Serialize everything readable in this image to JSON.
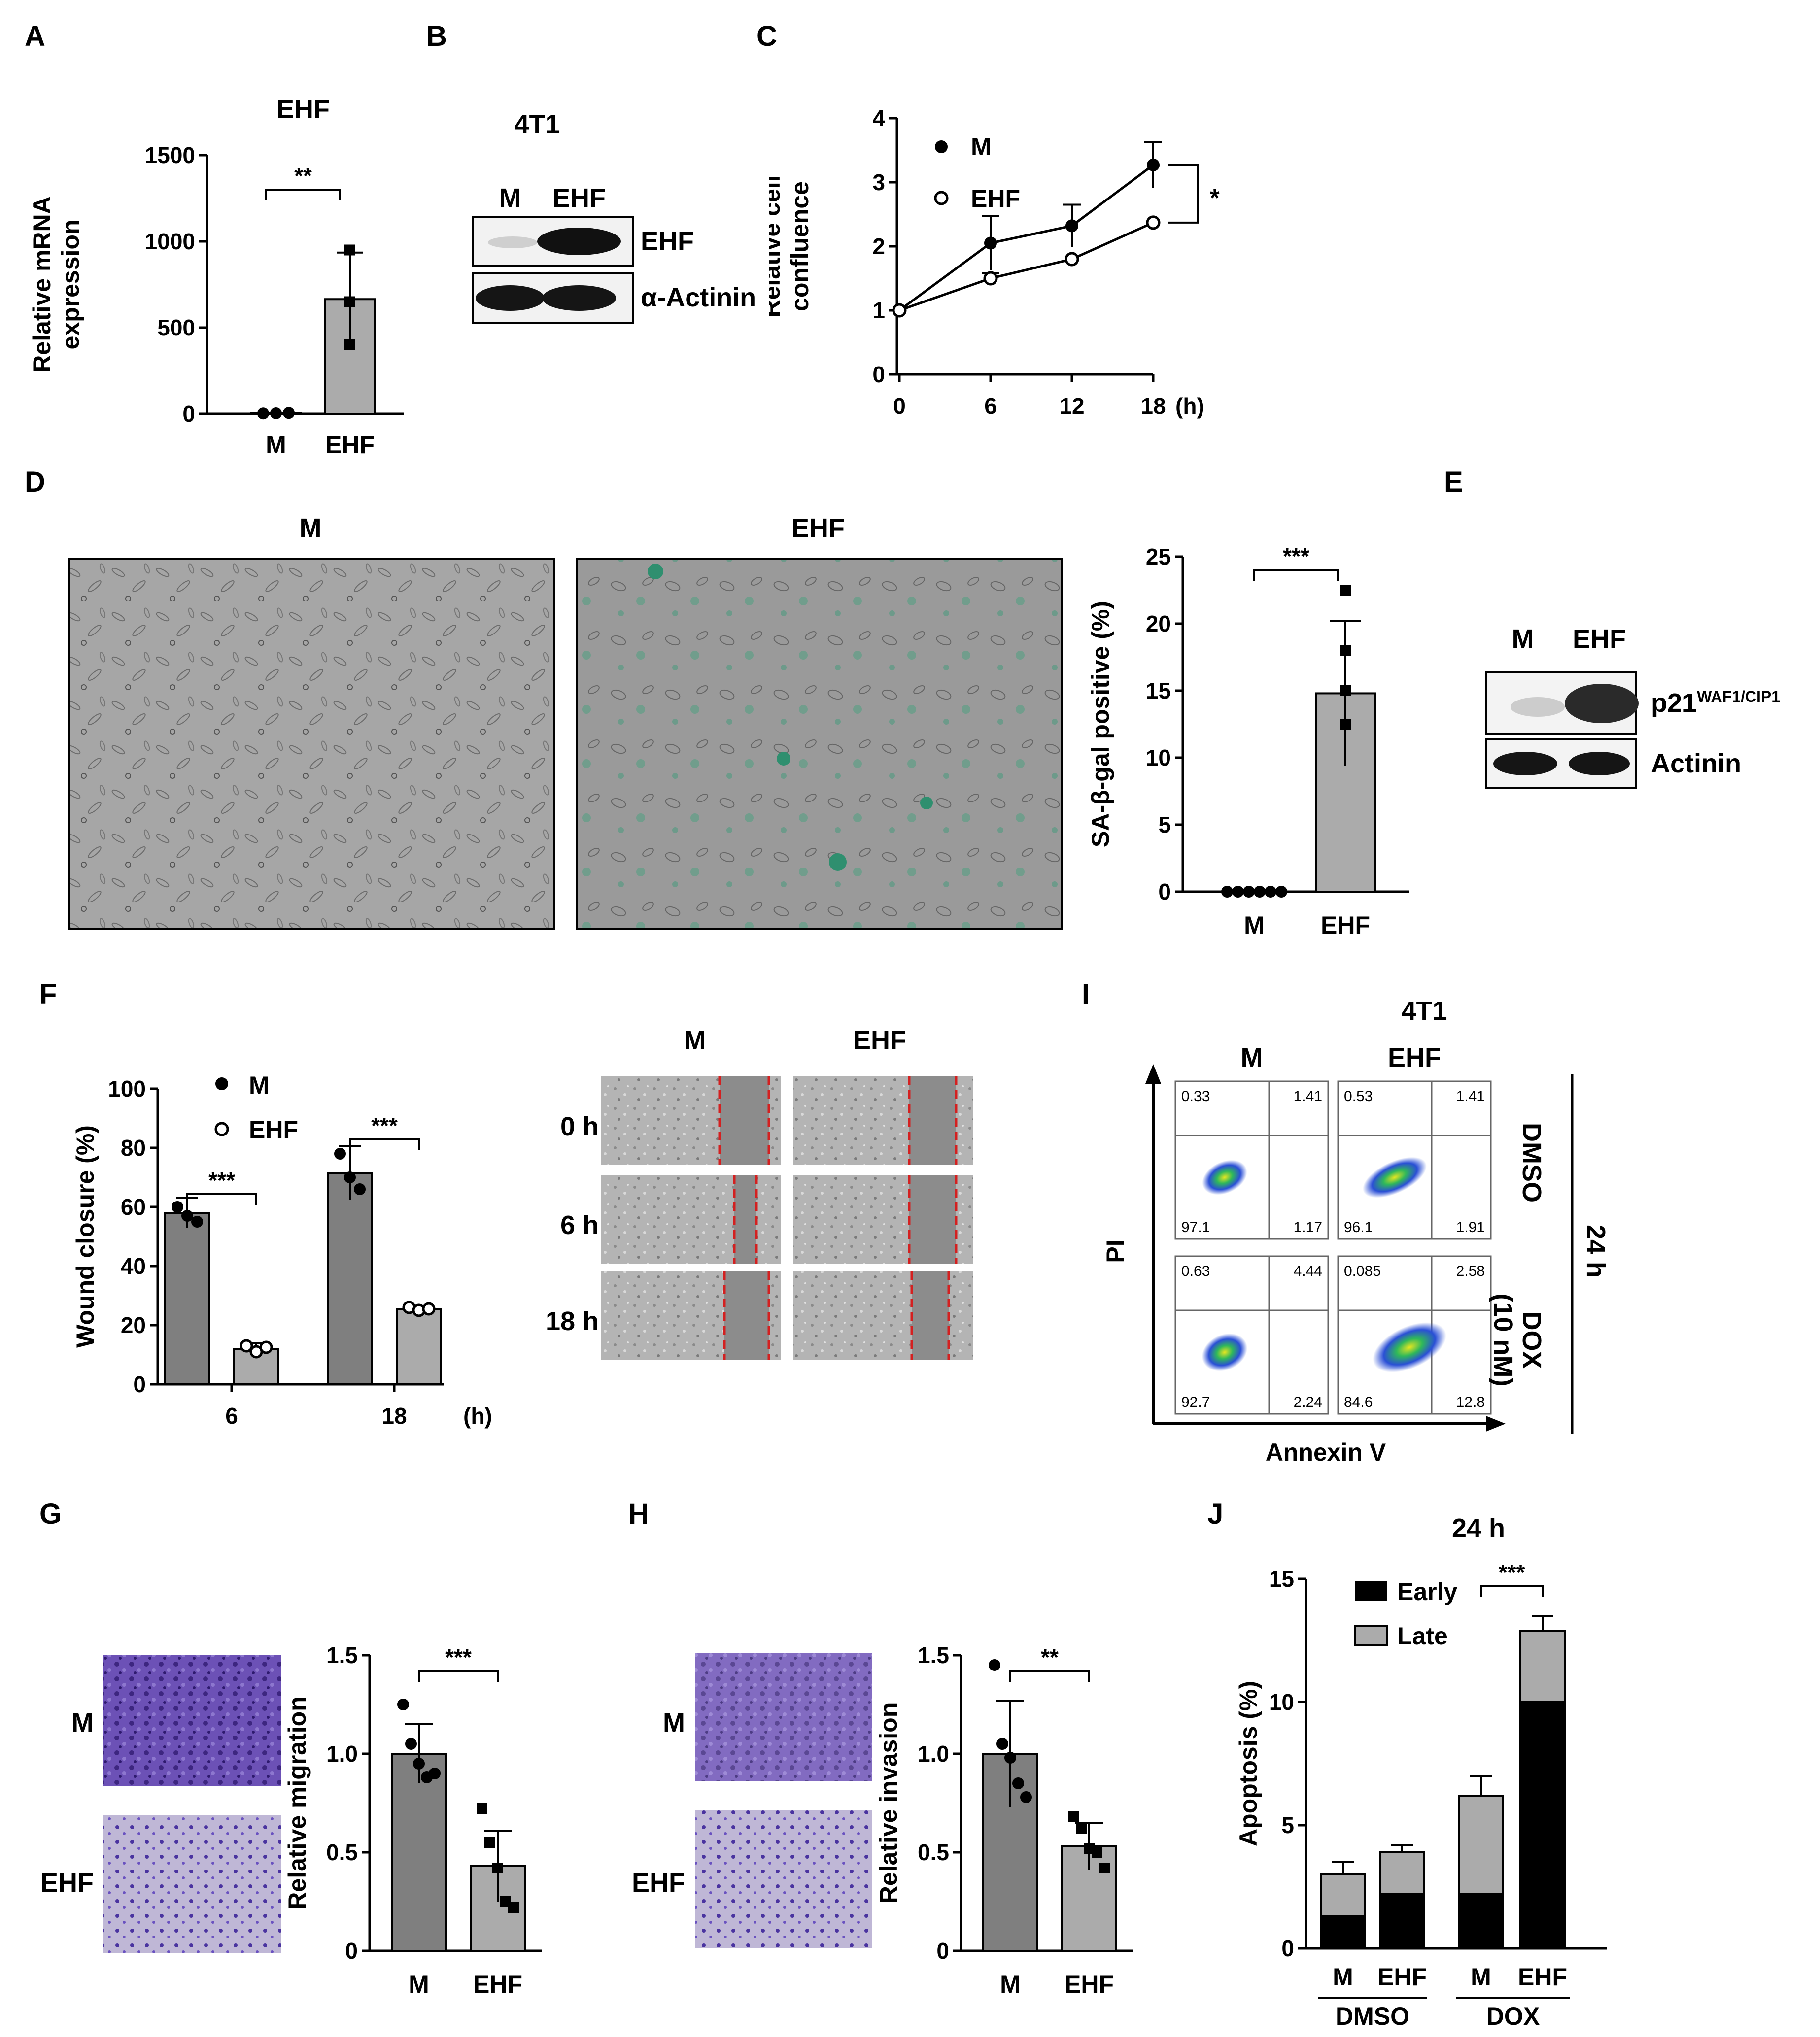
{
  "panels": {
    "A": {
      "label": "A"
    },
    "B": {
      "label": "B"
    },
    "C": {
      "label": "C"
    },
    "D": {
      "label": "D"
    },
    "E": {
      "label": "E"
    },
    "F": {
      "label": "F"
    },
    "G": {
      "label": "G"
    },
    "H": {
      "label": "H"
    },
    "I": {
      "label": "I"
    },
    "J": {
      "label": "J"
    }
  },
  "blotB": {
    "cell_line": "4T1",
    "lanes": [
      "M",
      "EHF"
    ],
    "rows": [
      "EHF",
      "α-Actinin"
    ]
  },
  "blotE": {
    "lanes": [
      "M",
      "EHF"
    ],
    "row1_main": "p21",
    "row1_sup": "WAF1/CIP1",
    "row2": "Actinin"
  },
  "microD": {
    "titles": [
      "M",
      "EHF"
    ]
  },
  "woundF": {
    "cols": [
      "M",
      "EHF"
    ],
    "rows": [
      "0 h",
      "6 h",
      "18 h"
    ]
  },
  "flowI": {
    "title": "4T1",
    "cols": [
      "M",
      "EHF"
    ],
    "rows": [
      "DMSO",
      "DOX\n(10 nM)"
    ],
    "right_label": "24 h",
    "xlabel": "Annexin V",
    "ylabel": "PI",
    "quadrants": [
      {
        "ul": "0.33",
        "ur": "1.41",
        "ll": "97.1",
        "lr": "1.17"
      },
      {
        "ul": "0.53",
        "ur": "1.41",
        "ll": "96.1",
        "lr": "1.91"
      },
      {
        "ul": "0.63",
        "ur": "4.44",
        "ll": "92.7",
        "lr": "2.24"
      },
      {
        "ul": "0.085",
        "ur": "2.58",
        "ll": "84.6",
        "lr": "12.8"
      }
    ]
  },
  "transG": {
    "rows": [
      "M",
      "EHF"
    ]
  },
  "transH": {
    "rows": [
      "M",
      "EHF"
    ]
  },
  "colors": {
    "bar_dark": "#7f7f7f",
    "bar_light": "#ababab",
    "purple": "#5a3c9e",
    "green": "#2f8f6f",
    "red": "#d42020"
  },
  "chart_data": [
    {
      "id": "A",
      "type": "bar",
      "title": "EHF",
      "categories": [
        "M",
        "EHF"
      ],
      "values": [
        4,
        665
      ],
      "error": [
        2,
        270
      ],
      "points": [
        [
          2,
          3,
          5
        ],
        [
          950,
          650,
          400
        ]
      ],
      "ylabel": "Relative mRNA\nexpression",
      "ylim": [
        0,
        1500
      ],
      "yticks": [
        "0",
        "500",
        "1000",
        "1500"
      ],
      "sig": "**"
    },
    {
      "id": "C",
      "type": "line",
      "x": [
        "0",
        "6",
        "12",
        "18"
      ],
      "x_unit": "(h)",
      "series": [
        {
          "name": "M",
          "values": [
            1.0,
            2.05,
            2.32,
            3.27
          ],
          "error": [
            0,
            0.42,
            0.33,
            0.36
          ]
        },
        {
          "name": "EHF",
          "values": [
            1.0,
            1.5,
            1.8,
            2.37
          ],
          "error": [
            0,
            0.08,
            0.05,
            0.04
          ]
        }
      ],
      "ylabel": "Relative cell\nconfluence",
      "ylim": [
        0,
        4
      ],
      "yticks": [
        "0",
        "1",
        "2",
        "3",
        "4"
      ],
      "sig": "*"
    },
    {
      "id": "D",
      "type": "bar",
      "categories": [
        "M",
        "EHF"
      ],
      "values": [
        0,
        14.8
      ],
      "error": [
        0,
        5.4
      ],
      "points": [
        [
          0,
          0,
          0,
          0,
          0,
          0
        ],
        [
          22.5,
          18.0,
          15.0,
          12.5
        ]
      ],
      "ylabel": "SA-β-gal positive (%)",
      "ylim": [
        0,
        25
      ],
      "yticks": [
        "0",
        "5",
        "10",
        "15",
        "20",
        "25"
      ],
      "sig": "***"
    },
    {
      "id": "F",
      "type": "bar",
      "categories": [
        "6",
        "18"
      ],
      "x_unit": "(h)",
      "series": [
        {
          "name": "M",
          "values": [
            58,
            71.5
          ],
          "error": [
            5,
            9
          ]
        },
        {
          "name": "EHF",
          "values": [
            12,
            25.5
          ],
          "error": [
            2,
            1
          ]
        }
      ],
      "points": {
        "M": [
          [
            60,
            57,
            55
          ],
          [
            78,
            70,
            66
          ]
        ],
        "EHF": [
          [
            13,
            11,
            12.5
          ],
          [
            26,
            25,
            25.5
          ]
        ]
      },
      "ylabel": "Wound closure (%)",
      "ylim": [
        0,
        100
      ],
      "yticks": [
        "0",
        "20",
        "40",
        "60",
        "80",
        "100"
      ],
      "sig": [
        "***",
        "***"
      ]
    },
    {
      "id": "G",
      "type": "bar",
      "categories": [
        "M",
        "EHF"
      ],
      "values": [
        1.0,
        0.43
      ],
      "error": [
        0.15,
        0.18
      ],
      "points": [
        [
          1.25,
          1.05,
          0.95,
          0.88,
          0.9
        ],
        [
          0.72,
          0.55,
          0.42,
          0.25,
          0.22
        ]
      ],
      "ylabel": "Relative migration",
      "ylim": [
        0,
        1.5
      ],
      "yticks": [
        "0",
        "0.5",
        "1.0",
        "1.5"
      ],
      "sig": "***"
    },
    {
      "id": "H",
      "type": "bar",
      "categories": [
        "M",
        "EHF"
      ],
      "values": [
        1.0,
        0.53
      ],
      "error": [
        0.27,
        0.12
      ],
      "points": [
        [
          1.45,
          1.05,
          0.98,
          0.85,
          0.78
        ],
        [
          0.68,
          0.62,
          0.52,
          0.5,
          0.42
        ]
      ],
      "ylabel": "Relative invasion",
      "ylim": [
        0,
        1.5
      ],
      "yticks": [
        "0",
        "0.5",
        "1.0",
        "1.5"
      ],
      "sig": "**"
    },
    {
      "id": "J",
      "type": "bar",
      "stacked": true,
      "title": "24 h",
      "categories": [
        "M",
        "EHF",
        "M",
        "EHF"
      ],
      "groups": [
        "DMSO",
        "DOX"
      ],
      "series": [
        {
          "name": "Early",
          "values": [
            1.3,
            2.2,
            2.2,
            10.0
          ]
        },
        {
          "name": "Late",
          "values": [
            1.7,
            1.7,
            4.0,
            2.9
          ]
        }
      ],
      "error": [
        0.5,
        0.3,
        0.8,
        0.6
      ],
      "ylabel": "Apoptosis (%)",
      "ylim": [
        0,
        15
      ],
      "yticks": [
        "0",
        "5",
        "10",
        "15"
      ],
      "sig": "***"
    }
  ]
}
